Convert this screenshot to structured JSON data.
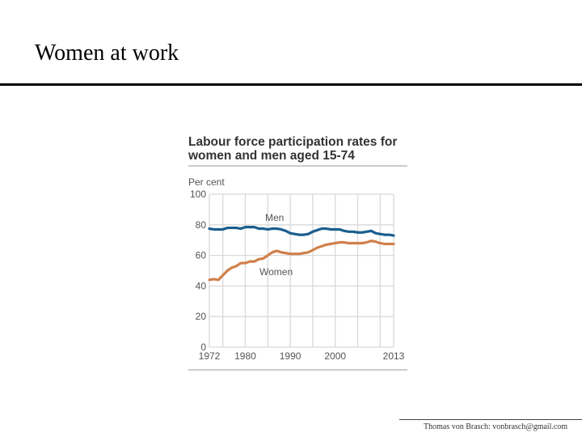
{
  "slide": {
    "title": "Women at work",
    "footer": "Thomas von Brasch: vonbrasch@gmail.com"
  },
  "colors": {
    "men": "#1a5e8e",
    "women": "#d0804a",
    "grid": "#d9d9d9",
    "text": "#555555",
    "title": "#333333"
  },
  "chart_data": {
    "type": "line",
    "title": "Labour force participation rates for women and men aged 15-74",
    "title_lines": [
      "Labour force participation rates for",
      "women and men aged 15-74"
    ],
    "ylabel": "Per cent",
    "xlim": [
      1972,
      2013
    ],
    "ylim": [
      0,
      100
    ],
    "grid": true,
    "x_tick_labels": [
      "1972",
      "1980",
      "1990",
      "2000",
      "2013"
    ],
    "x_ticks": [
      1972,
      1980,
      1990,
      2000,
      2013
    ],
    "y_tick_labels": [
      "0",
      "20",
      "40",
      "60",
      "80",
      "100"
    ],
    "y_ticks": [
      0,
      20,
      40,
      60,
      80,
      100
    ],
    "x": [
      1972,
      1973,
      1974,
      1975,
      1976,
      1977,
      1978,
      1979,
      1980,
      1981,
      1982,
      1983,
      1984,
      1985,
      1986,
      1987,
      1988,
      1989,
      1990,
      1991,
      1992,
      1993,
      1994,
      1995,
      1996,
      1997,
      1998,
      1999,
      2000,
      2001,
      2002,
      2003,
      2004,
      2005,
      2006,
      2007,
      2008,
      2009,
      2010,
      2011,
      2012,
      2013
    ],
    "series": [
      {
        "name": "Men",
        "values": [
          77.5,
          77,
          77,
          77,
          78,
          78,
          78,
          77.5,
          78.5,
          78.5,
          78.5,
          77.5,
          77.5,
          77,
          77.5,
          77.5,
          77,
          76,
          74.5,
          74,
          73.5,
          73.5,
          74,
          75.5,
          76.5,
          77.5,
          77.5,
          77,
          77,
          77,
          76,
          75.5,
          75.5,
          75,
          75,
          75.5,
          76,
          74.5,
          74,
          73.5,
          73.5,
          73
        ]
      },
      {
        "name": "Women",
        "values": [
          44,
          44.5,
          44,
          47,
          50,
          52,
          53,
          55,
          55,
          56,
          56,
          57.5,
          58,
          60,
          62,
          63,
          62,
          61.5,
          61,
          61,
          61,
          61.5,
          62,
          63.5,
          65,
          66,
          67,
          67.5,
          68,
          68.5,
          68.5,
          68,
          68,
          68,
          68,
          68.5,
          69.5,
          69,
          68,
          67.5,
          67.5,
          67.5
        ]
      }
    ],
    "annotations": [
      {
        "text": "Men",
        "series": "Men"
      },
      {
        "text": "Women",
        "series": "Women"
      }
    ]
  }
}
